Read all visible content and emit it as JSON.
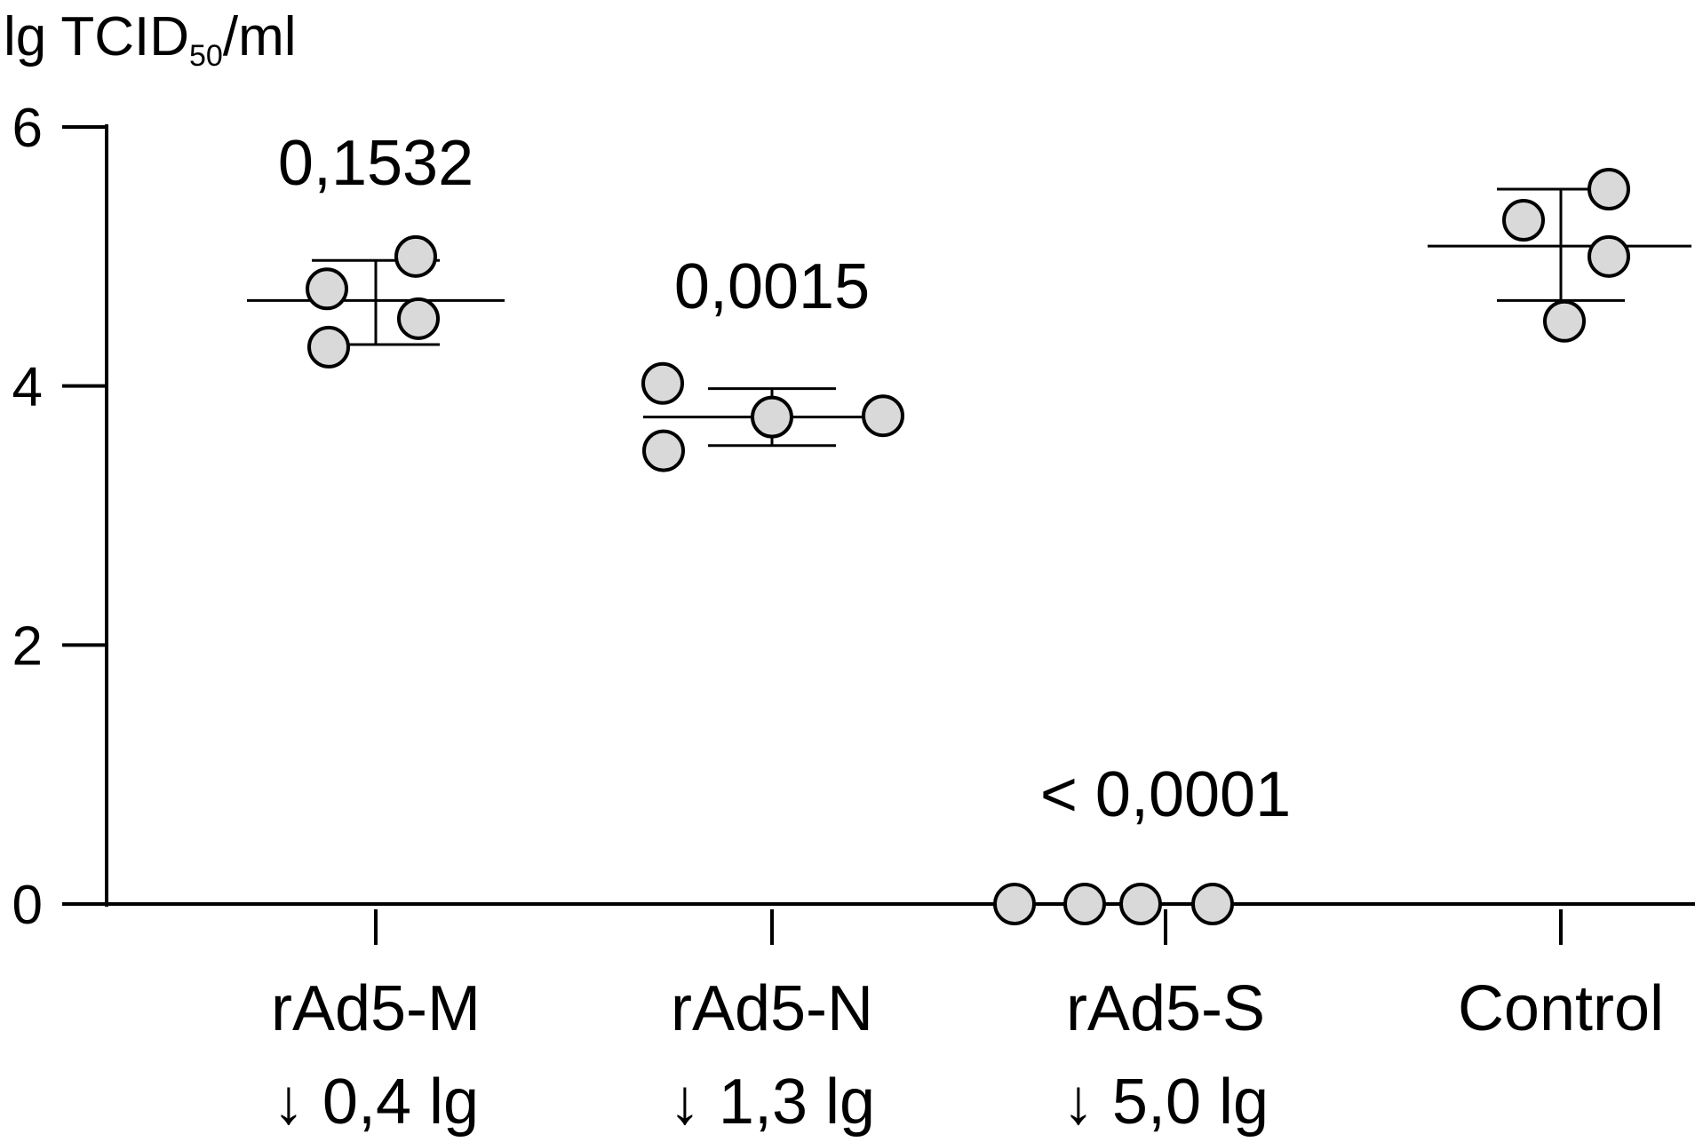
{
  "chart_data": {
    "type": "scatter",
    "ylabel": {
      "prefix": "lg TCID",
      "subscript": "50",
      "suffix": "/ml"
    },
    "ylim": [
      0,
      6
    ],
    "yticks": [
      "0",
      "2",
      "4",
      "6"
    ],
    "groups": [
      {
        "label": "rAd5-M",
        "reduction": "↓ 0,4 lg",
        "p_value": "0,1532",
        "points": [
          4.75,
          4.3,
          5.0,
          4.52
        ],
        "mean": 4.66,
        "sd_upper": 4.97,
        "sd_lower": 4.32
      },
      {
        "label": "rAd5-N",
        "reduction": "↓ 1,3 lg",
        "p_value": "0,0015",
        "points": [
          4.02,
          3.5,
          3.76,
          3.77
        ],
        "mean": 3.76,
        "sd_upper": 3.98,
        "sd_lower": 3.54
      },
      {
        "label": "rAd5-S",
        "reduction": "↓ 5,0 lg",
        "p_value": "< 0,0001",
        "points": [
          0,
          0,
          0,
          0
        ],
        "mean": 0,
        "sd_upper": 0,
        "sd_lower": 0
      },
      {
        "label": "Control",
        "reduction": "",
        "p_value": "",
        "points": [
          5.28,
          4.5,
          5.52,
          5.0
        ],
        "mean": 5.08,
        "sd_upper": 5.52,
        "sd_lower": 4.66
      }
    ],
    "colors": {
      "marker_fill": "#d9d9d9",
      "line": "#000000"
    }
  }
}
